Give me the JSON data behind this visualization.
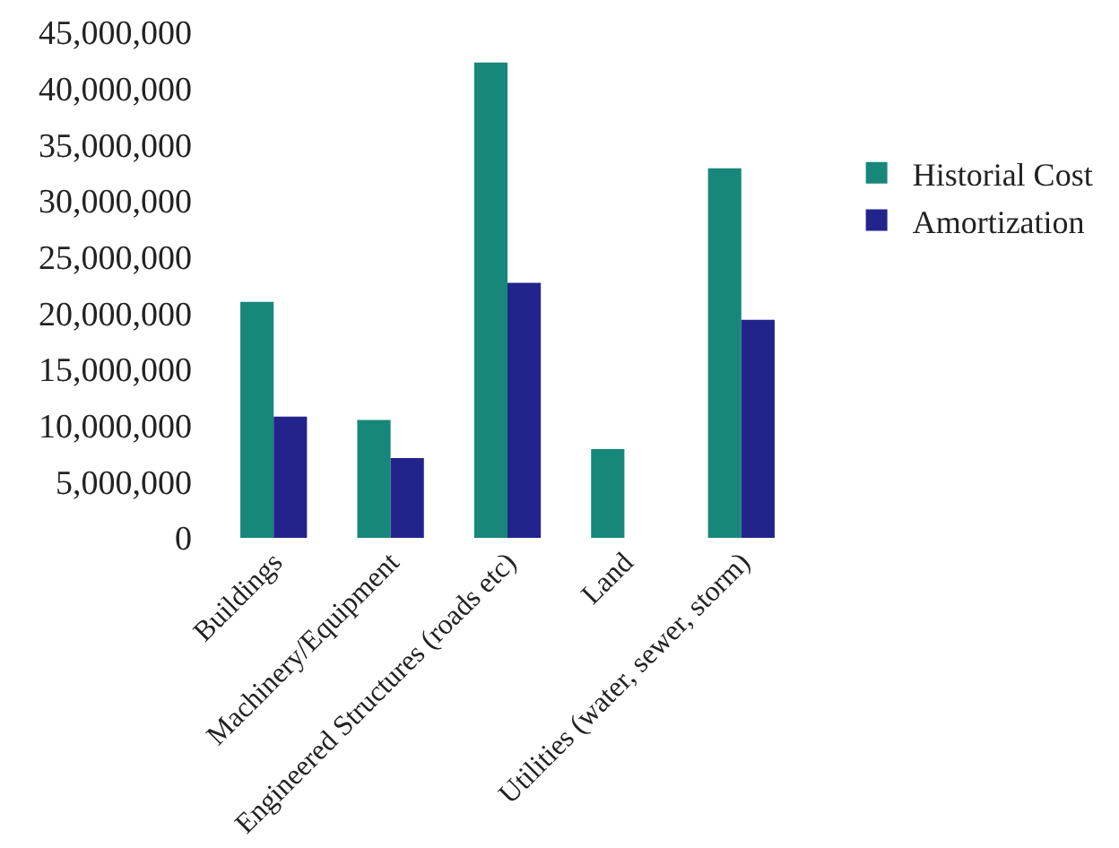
{
  "chart_data": {
    "type": "bar",
    "categories": [
      "Buildings",
      "Machinery/Equipment",
      "Engineered Structures (roads etc)",
      "Land",
      "Utilities (water, sewer, storm)"
    ],
    "series": [
      {
        "name": "Historial Cost",
        "color": "#17877a",
        "values": [
          21000000,
          10500000,
          42300000,
          7900000,
          32900000
        ]
      },
      {
        "name": "Amortization",
        "color": "#22248c",
        "values": [
          10800000,
          7100000,
          22700000,
          null,
          19400000
        ]
      }
    ],
    "ylim": [
      0,
      45000000
    ],
    "yticks": [
      {
        "value": 0,
        "label": "0"
      },
      {
        "value": 5000000,
        "label": "5,000,000"
      },
      {
        "value": 10000000,
        "label": "10,000,000"
      },
      {
        "value": 15000000,
        "label": "15,000,000"
      },
      {
        "value": 20000000,
        "label": "20,000,000"
      },
      {
        "value": 25000000,
        "label": "25,000,000"
      },
      {
        "value": 30000000,
        "label": "30,000,000"
      },
      {
        "value": 35000000,
        "label": "35,000,000"
      },
      {
        "value": 40000000,
        "label": "40,000,000"
      },
      {
        "value": 45000000,
        "label": "45,000,000"
      }
    ],
    "grid": false,
    "legend": "right"
  }
}
